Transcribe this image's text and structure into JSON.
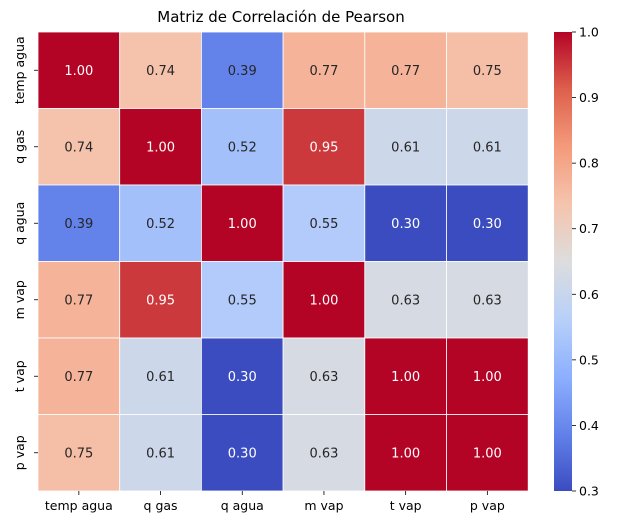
{
  "chart_data": {
    "type": "heatmap",
    "title": "Matriz de Correlación de Pearson",
    "xlabel": "",
    "ylabel": "",
    "x_labels": [
      "temp agua",
      "q gas",
      "q agua",
      "m vap",
      "t vap",
      "p vap"
    ],
    "y_labels": [
      "temp agua",
      "q gas",
      "q agua",
      "m vap",
      "t vap",
      "p vap"
    ],
    "values": [
      [
        1.0,
        0.74,
        0.39,
        0.77,
        0.77,
        0.75
      ],
      [
        0.74,
        1.0,
        0.52,
        0.95,
        0.61,
        0.61
      ],
      [
        0.39,
        0.52,
        1.0,
        0.55,
        0.3,
        0.3
      ],
      [
        0.77,
        0.95,
        0.55,
        1.0,
        0.63,
        0.63
      ],
      [
        0.77,
        0.61,
        0.3,
        0.63,
        1.0,
        1.0
      ],
      [
        0.75,
        0.61,
        0.3,
        0.63,
        1.0,
        1.0
      ]
    ],
    "colormap": "coolwarm",
    "vmin": 0.3,
    "vmax": 1.0,
    "colorbar_ticks": [
      0.3,
      0.4,
      0.5,
      0.6,
      0.7,
      0.8,
      0.9,
      1.0
    ],
    "colorbar_tick_labels": [
      "0.3",
      "0.4",
      "0.5",
      "0.6",
      "0.7",
      "0.8",
      "0.9",
      "1.0"
    ],
    "annotation_format": "0.00",
    "grid": false,
    "legend": "colorbar-right"
  }
}
